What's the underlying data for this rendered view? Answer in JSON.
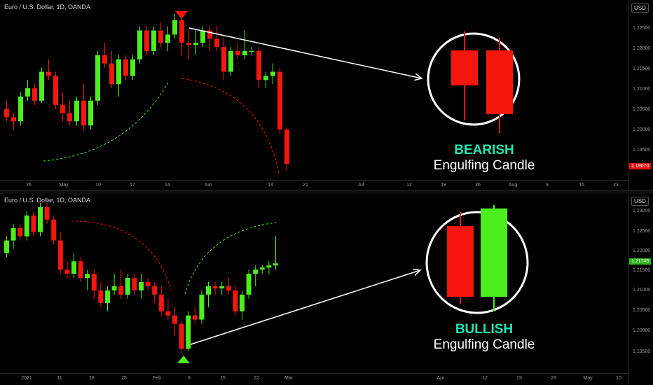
{
  "colors": {
    "bull": "#4cee1e",
    "bear": "#f5160e",
    "circle": "#ffffff",
    "caption_accent": "#1de9b6"
  },
  "top": {
    "title": "Euro / U.S. Dollar, 1D, OANDA",
    "currency": "USD",
    "y_ticks": [
      "1.22500",
      "1.22000",
      "1.21500",
      "1.21000",
      "1.20500",
      "1.20000",
      "1.19500"
    ],
    "price_tag": "1.19070",
    "x_ticks": [
      "26",
      "May",
      "10",
      "17",
      "24",
      "Jun",
      "14",
      "21",
      "Jul",
      "12",
      "19",
      "26",
      "Aug",
      "9",
      "16",
      "23"
    ],
    "caption": {
      "kind": "BEARISH",
      "text": "Engulfing Candle"
    }
  },
  "bottom": {
    "title": "Euro / U.S. Dollar, 1D, OANDA",
    "currency": "USD",
    "y_ticks": [
      "1.23000",
      "1.22500",
      "1.22000",
      "1.21500",
      "1.21000",
      "1.20500",
      "1.20000",
      "1.19500"
    ],
    "price_tag": "1.21745",
    "x_ticks": [
      "2021",
      "11",
      "18",
      "25",
      "Feb",
      "8",
      "15",
      "22",
      "Mar",
      "Apr",
      "12",
      "19",
      "26",
      "May",
      "10"
    ],
    "caption": {
      "kind": "BULLISH",
      "text": "Engulfing Candle"
    }
  },
  "chart_data": [
    {
      "type": "candlestick",
      "title": "Euro / U.S. Dollar, 1D, OANDA",
      "ylim": [
        1.188,
        1.228
      ],
      "candles": [
        {
          "o": 1.204,
          "h": 1.206,
          "l": 1.201,
          "c": 1.202
        },
        {
          "o": 1.202,
          "h": 1.203,
          "l": 1.199,
          "c": 1.201
        },
        {
          "o": 1.201,
          "h": 1.208,
          "l": 1.2,
          "c": 1.207
        },
        {
          "o": 1.207,
          "h": 1.211,
          "l": 1.206,
          "c": 1.209
        },
        {
          "o": 1.209,
          "h": 1.21,
          "l": 1.205,
          "c": 1.206
        },
        {
          "o": 1.206,
          "h": 1.214,
          "l": 1.2055,
          "c": 1.213
        },
        {
          "o": 1.213,
          "h": 1.216,
          "l": 1.211,
          "c": 1.212
        },
        {
          "o": 1.212,
          "h": 1.213,
          "l": 1.204,
          "c": 1.205
        },
        {
          "o": 1.205,
          "h": 1.208,
          "l": 1.201,
          "c": 1.203
        },
        {
          "o": 1.203,
          "h": 1.206,
          "l": 1.2,
          "c": 1.201
        },
        {
          "o": 1.201,
          "h": 1.207,
          "l": 1.2,
          "c": 1.206
        },
        {
          "o": 1.206,
          "h": 1.21,
          "l": 1.199,
          "c": 1.2
        },
        {
          "o": 1.2,
          "h": 1.207,
          "l": 1.199,
          "c": 1.206
        },
        {
          "o": 1.206,
          "h": 1.218,
          "l": 1.205,
          "c": 1.217
        },
        {
          "o": 1.217,
          "h": 1.22,
          "l": 1.214,
          "c": 1.215
        },
        {
          "o": 1.215,
          "h": 1.218,
          "l": 1.209,
          "c": 1.21
        },
        {
          "o": 1.21,
          "h": 1.217,
          "l": 1.207,
          "c": 1.216
        },
        {
          "o": 1.216,
          "h": 1.217,
          "l": 1.211,
          "c": 1.212
        },
        {
          "o": 1.212,
          "h": 1.217,
          "l": 1.211,
          "c": 1.216
        },
        {
          "o": 1.216,
          "h": 1.224,
          "l": 1.215,
          "c": 1.223
        },
        {
          "o": 1.223,
          "h": 1.224,
          "l": 1.217,
          "c": 1.218
        },
        {
          "o": 1.218,
          "h": 1.224,
          "l": 1.217,
          "c": 1.223
        },
        {
          "o": 1.223,
          "h": 1.225,
          "l": 1.219,
          "c": 1.22
        },
        {
          "o": 1.22,
          "h": 1.224,
          "l": 1.218,
          "c": 1.222
        },
        {
          "o": 1.222,
          "h": 1.227,
          "l": 1.221,
          "c": 1.2255
        },
        {
          "o": 1.2255,
          "h": 1.226,
          "l": 1.217,
          "c": 1.22
        },
        {
          "o": 1.22,
          "h": 1.223,
          "l": 1.216,
          "c": 1.2195
        },
        {
          "o": 1.2195,
          "h": 1.223,
          "l": 1.217,
          "c": 1.22
        },
        {
          "o": 1.22,
          "h": 1.224,
          "l": 1.219,
          "c": 1.223
        },
        {
          "o": 1.223,
          "h": 1.224,
          "l": 1.218,
          "c": 1.221
        },
        {
          "o": 1.221,
          "h": 1.224,
          "l": 1.218,
          "c": 1.219
        },
        {
          "o": 1.219,
          "h": 1.221,
          "l": 1.211,
          "c": 1.213
        },
        {
          "o": 1.213,
          "h": 1.219,
          "l": 1.212,
          "c": 1.218
        },
        {
          "o": 1.218,
          "h": 1.22,
          "l": 1.216,
          "c": 1.217
        },
        {
          "o": 1.217,
          "h": 1.223,
          "l": 1.216,
          "c": 1.218
        },
        {
          "o": 1.218,
          "h": 1.219,
          "l": 1.217,
          "c": 1.218
        },
        {
          "o": 1.218,
          "h": 1.219,
          "l": 1.209,
          "c": 1.211
        },
        {
          "o": 1.211,
          "h": 1.213,
          "l": 1.209,
          "c": 1.212
        },
        {
          "o": 1.212,
          "h": 1.215,
          "l": 1.21,
          "c": 1.213
        },
        {
          "o": 1.213,
          "h": 1.214,
          "l": 1.198,
          "c": 1.199
        },
        {
          "o": 1.199,
          "h": 1.1995,
          "l": 1.189,
          "c": 1.1907
        }
      ],
      "engulfing_example": {
        "type": "bearish",
        "candles": [
          {
            "o": 1.0,
            "h": 1.3,
            "l": -0.1,
            "c": 0.45
          },
          {
            "o": 1.0,
            "h": 1.2,
            "l": -0.3,
            "c": 0.0
          }
        ]
      }
    },
    {
      "type": "candlestick",
      "title": "Euro / U.S. Dollar, 1D, OANDA",
      "ylim": [
        1.192,
        1.233
      ],
      "candles": [
        {
          "o": 1.22,
          "h": 1.224,
          "l": 1.219,
          "c": 1.223
        },
        {
          "o": 1.223,
          "h": 1.227,
          "l": 1.221,
          "c": 1.226
        },
        {
          "o": 1.226,
          "h": 1.227,
          "l": 1.223,
          "c": 1.224
        },
        {
          "o": 1.224,
          "h": 1.23,
          "l": 1.223,
          "c": 1.229
        },
        {
          "o": 1.229,
          "h": 1.23,
          "l": 1.224,
          "c": 1.225
        },
        {
          "o": 1.225,
          "h": 1.232,
          "l": 1.224,
          "c": 1.231
        },
        {
          "o": 1.231,
          "h": 1.232,
          "l": 1.227,
          "c": 1.228
        },
        {
          "o": 1.228,
          "h": 1.229,
          "l": 1.222,
          "c": 1.223
        },
        {
          "o": 1.223,
          "h": 1.225,
          "l": 1.215,
          "c": 1.216
        },
        {
          "o": 1.216,
          "h": 1.218,
          "l": 1.214,
          "c": 1.215
        },
        {
          "o": 1.215,
          "h": 1.22,
          "l": 1.214,
          "c": 1.218
        },
        {
          "o": 1.218,
          "h": 1.219,
          "l": 1.213,
          "c": 1.214
        },
        {
          "o": 1.214,
          "h": 1.216,
          "l": 1.211,
          "c": 1.215
        },
        {
          "o": 1.215,
          "h": 1.216,
          "l": 1.209,
          "c": 1.211
        },
        {
          "o": 1.211,
          "h": 1.213,
          "l": 1.207,
          "c": 1.208
        },
        {
          "o": 1.208,
          "h": 1.212,
          "l": 1.206,
          "c": 1.211
        },
        {
          "o": 1.211,
          "h": 1.215,
          "l": 1.21,
          "c": 1.212
        },
        {
          "o": 1.212,
          "h": 1.216,
          "l": 1.209,
          "c": 1.21
        },
        {
          "o": 1.21,
          "h": 1.215,
          "l": 1.209,
          "c": 1.214
        },
        {
          "o": 1.214,
          "h": 1.215,
          "l": 1.21,
          "c": 1.211
        },
        {
          "o": 1.211,
          "h": 1.215,
          "l": 1.209,
          "c": 1.213
        },
        {
          "o": 1.213,
          "h": 1.214,
          "l": 1.211,
          "c": 1.212
        },
        {
          "o": 1.212,
          "h": 1.213,
          "l": 1.208,
          "c": 1.21
        },
        {
          "o": 1.21,
          "h": 1.212,
          "l": 1.205,
          "c": 1.206
        },
        {
          "o": 1.206,
          "h": 1.209,
          "l": 1.204,
          "c": 1.205
        },
        {
          "o": 1.205,
          "h": 1.207,
          "l": 1.2,
          "c": 1.203
        },
        {
          "o": 1.203,
          "h": 1.2035,
          "l": 1.196,
          "c": 1.197
        },
        {
          "o": 1.197,
          "h": 1.206,
          "l": 1.1965,
          "c": 1.205
        },
        {
          "o": 1.205,
          "h": 1.207,
          "l": 1.203,
          "c": 1.204
        },
        {
          "o": 1.204,
          "h": 1.211,
          "l": 1.203,
          "c": 1.21
        },
        {
          "o": 1.21,
          "h": 1.213,
          "l": 1.207,
          "c": 1.212
        },
        {
          "o": 1.212,
          "h": 1.213,
          "l": 1.21,
          "c": 1.2115
        },
        {
          "o": 1.2115,
          "h": 1.213,
          "l": 1.21,
          "c": 1.212
        },
        {
          "o": 1.212,
          "h": 1.214,
          "l": 1.21,
          "c": 1.211
        },
        {
          "o": 1.211,
          "h": 1.212,
          "l": 1.205,
          "c": 1.206
        },
        {
          "o": 1.206,
          "h": 1.211,
          "l": 1.204,
          "c": 1.21
        },
        {
          "o": 1.21,
          "h": 1.216,
          "l": 1.209,
          "c": 1.215
        },
        {
          "o": 1.215,
          "h": 1.217,
          "l": 1.212,
          "c": 1.216
        },
        {
          "o": 1.216,
          "h": 1.217,
          "l": 1.215,
          "c": 1.2165
        },
        {
          "o": 1.2165,
          "h": 1.218,
          "l": 1.215,
          "c": 1.217
        },
        {
          "o": 1.217,
          "h": 1.224,
          "l": 1.216,
          "c": 1.2175
        }
      ],
      "engulfing_example": {
        "type": "bullish",
        "candles": [
          {
            "o": 1.0,
            "h": 1.2,
            "l": -0.1,
            "c": 0.0
          },
          {
            "o": 0.0,
            "h": 1.3,
            "l": -0.2,
            "c": 1.25
          }
        ]
      }
    }
  ]
}
